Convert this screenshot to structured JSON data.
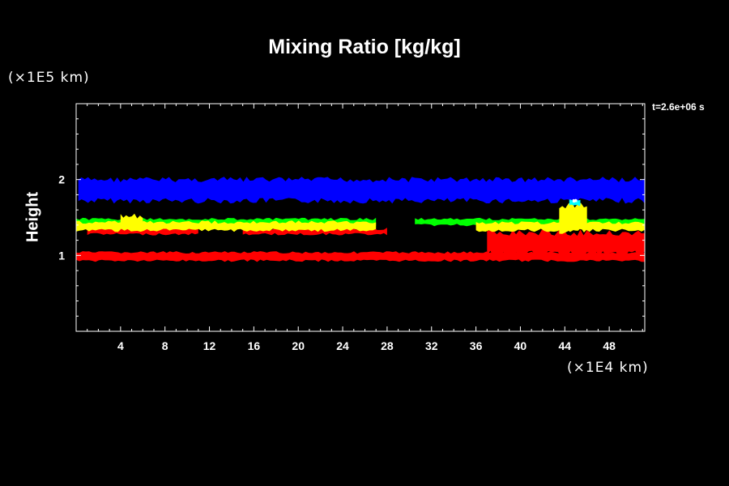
{
  "chart_data": {
    "type": "heatmap",
    "title": "Mixing Ratio [kg/kg]",
    "ylabel": "Height",
    "y_unit": "(×1E5 km)",
    "x_unit": "(×1E4 km)",
    "time_label": "t=2.6e+06 s",
    "xlim": [
      0,
      51.2
    ],
    "ylim": [
      0,
      3
    ],
    "x_ticks": [
      4,
      8,
      12,
      16,
      20,
      24,
      28,
      32,
      36,
      40,
      44,
      48
    ],
    "y_ticks": [
      1,
      2
    ],
    "colors": {
      "background": "#000000",
      "blue": "#0000ff",
      "yellow": "#ffff00",
      "green": "#00ff00",
      "red": "#ff0000",
      "cyan": "#00ffff",
      "white": "#ffffff"
    }
  }
}
